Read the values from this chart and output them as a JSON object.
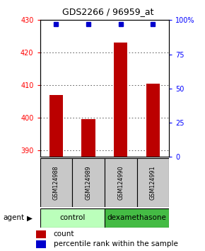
{
  "title": "GDS2266 / 96959_at",
  "samples": [
    "GSM124988",
    "GSM124989",
    "GSM124990",
    "GSM124991"
  ],
  "bar_values": [
    407.0,
    399.5,
    423.0,
    410.5
  ],
  "bar_color": "#bb0000",
  "percentile_values": [
    97,
    97,
    97,
    97
  ],
  "percentile_color": "#0000cc",
  "ylim_left": [
    388,
    430
  ],
  "yticks_left": [
    390,
    400,
    410,
    420,
    430
  ],
  "ylim_right": [
    0,
    100
  ],
  "yticks_right": [
    0,
    25,
    50,
    75,
    100
  ],
  "ytick_right_labels": [
    "0",
    "25",
    "50",
    "75",
    "100%"
  ],
  "groups": [
    {
      "label": "control",
      "indices": [
        0,
        1
      ],
      "color": "#bbffbb"
    },
    {
      "label": "dexamethasone",
      "indices": [
        2,
        3
      ],
      "color": "#44bb44"
    }
  ],
  "agent_label": "agent",
  "legend_count_label": "count",
  "legend_percentile_label": "percentile rank within the sample",
  "background_color": "#ffffff",
  "plot_bg_color": "#ffffff",
  "sample_box_color": "#c8c8c8",
  "bar_width": 0.42
}
